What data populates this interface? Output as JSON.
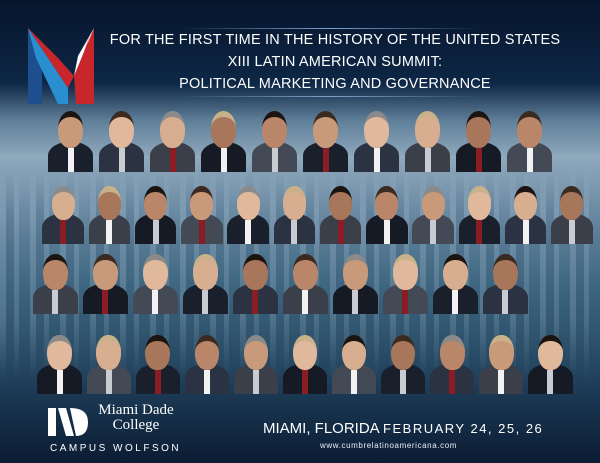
{
  "header": {
    "line1": "FOR THE FIRST TIME IN THE HISTORY OF THE UNITED STATES",
    "line2": "XIII LATIN AMERICAN SUMMIT:",
    "line3": "POLITICAL MARKETING AND GOVERNANCE",
    "logo_icon": "summit-m-logo"
  },
  "speakers_rows": [
    10,
    12,
    10,
    11
  ],
  "footer": {
    "college_name": "Miami Dade College",
    "college_line1": "Miami Dade",
    "college_line2": "College",
    "campus": "CAMPUS WOLFSON",
    "city": "MIAMI, FLORIDA",
    "dates": "FEBRUARY 24, 25, 26",
    "website": "www.cumbrelatinoamericana.com"
  },
  "colors": {
    "background": "#0d2746",
    "logo_red": "#c9262c",
    "logo_blue": "#2a8fd0"
  }
}
